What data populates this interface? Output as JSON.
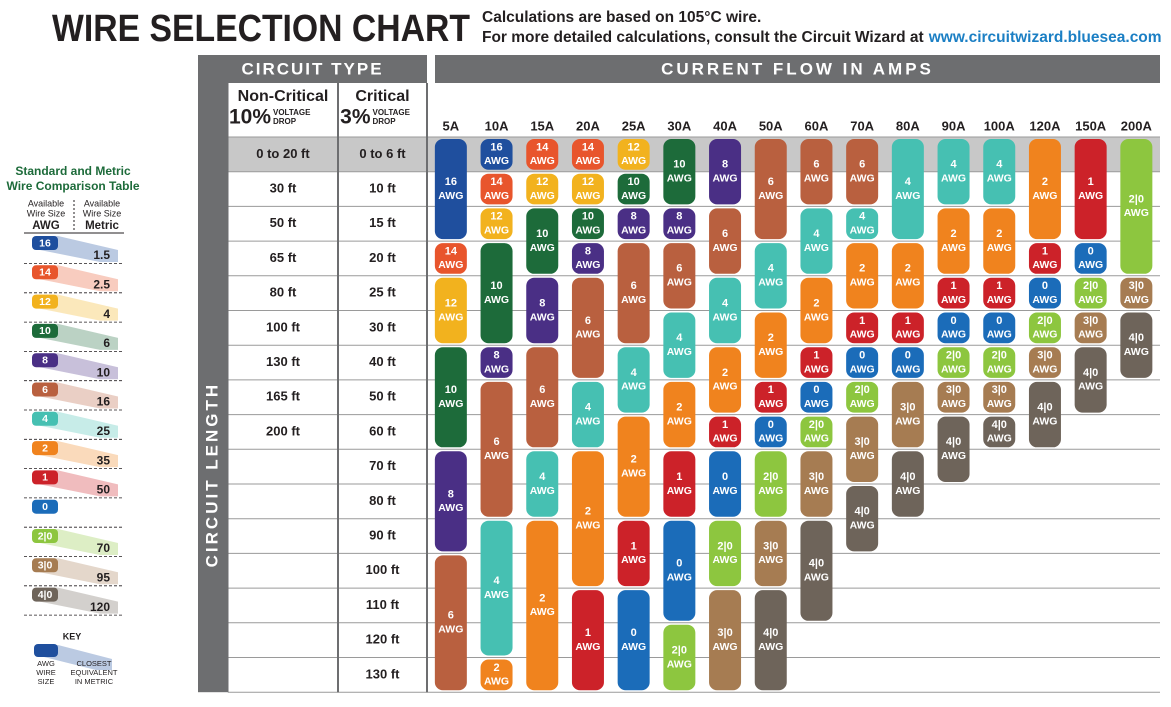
{
  "header": {
    "title": "WIRE SELECTION CHART",
    "notes": [
      "Calculations are based on 105°C wire.",
      "For more detailed calculations, consult the Circuit Wizard at"
    ],
    "link": "www.circuitwizard.bluesea.com"
  },
  "comparison": {
    "title": [
      "Standard and Metric",
      "Wire Comparison Table"
    ],
    "col_headers": [
      [
        "Available",
        "Wire Size",
        "AWG"
      ],
      [
        "Available",
        "Wire Size",
        "Metric"
      ]
    ],
    "rows": [
      {
        "awg": "16",
        "metric": "1.5",
        "color": "#1f4f9e"
      },
      {
        "awg": "14",
        "metric": "2.5",
        "color": "#e8552c"
      },
      {
        "awg": "12",
        "metric": "4",
        "color": "#f2b21e"
      },
      {
        "awg": "10",
        "metric": "6",
        "color": "#1d6b3a"
      },
      {
        "awg": "8",
        "metric": "10",
        "color": "#4a2f85"
      },
      {
        "awg": "6",
        "metric": "16",
        "color": "#b9603f"
      },
      {
        "awg": "4",
        "metric": "25",
        "color": "#46c0b2"
      },
      {
        "awg": "2",
        "metric": "35",
        "color": "#f0831e"
      },
      {
        "awg": "1",
        "metric": "50",
        "color": "#cc2229"
      },
      {
        "awg": "0",
        "metric": null,
        "color": "#1b6cb9"
      },
      {
        "awg": "2|0",
        "metric": "70",
        "color": "#8dc63f"
      },
      {
        "awg": "3|0",
        "metric": "95",
        "color": "#a67c52"
      },
      {
        "awg": "4|0",
        "metric": "120",
        "color": "#6e645a"
      }
    ],
    "key": {
      "title": "KEY",
      "awg": [
        "AWG",
        "WIRE",
        "SIZE"
      ],
      "metric": [
        "CLOSEST",
        "EQUIVALENT",
        "IN METRIC"
      ]
    }
  },
  "chart": {
    "circuit_type": "CIRCUIT TYPE",
    "current_flow": "CURRENT FLOW IN AMPS",
    "circuit_length": "CIRCUIT LENGTH",
    "unit": "AWG",
    "non_critical": {
      "name": "Non-Critical",
      "pct": "10%",
      "drop": [
        "VOLTAGE",
        "DROP"
      ],
      "lengths": [
        "0 to 20 ft",
        "30 ft",
        "50 ft",
        "65 ft",
        "80 ft",
        "100 ft",
        "130 ft",
        "165 ft",
        "200 ft"
      ]
    },
    "critical": {
      "name": "Critical",
      "pct": "3%",
      "drop": [
        "VOLTAGE",
        "DROP"
      ],
      "lengths": [
        "0 to 6 ft",
        "10 ft",
        "15 ft",
        "20 ft",
        "25 ft",
        "30 ft",
        "40 ft",
        "50 ft",
        "60 ft",
        "70 ft",
        "80 ft",
        "90 ft",
        "100 ft",
        "110 ft",
        "120 ft",
        "130 ft"
      ]
    },
    "amps": [
      {
        "label": "5A",
        "cells": [
          "16",
          "16",
          "16",
          "14",
          "12",
          "12",
          "10",
          "10",
          "10",
          "8",
          "8",
          "8",
          "6",
          "6",
          "6",
          "6"
        ]
      },
      {
        "label": "10A",
        "cells": [
          "16",
          "14",
          "12",
          "10",
          "10",
          "10",
          "8",
          "6",
          "6",
          "6",
          "6",
          "4",
          "4",
          "4",
          "4",
          "2"
        ]
      },
      {
        "label": "15A",
        "cells": [
          "14",
          "12",
          "10",
          "10",
          "8",
          "8",
          "6",
          "6",
          "6",
          "4",
          "4",
          "2",
          "2",
          "2",
          "2",
          "2"
        ]
      },
      {
        "label": "20A",
        "cells": [
          "14",
          "12",
          "10",
          "8",
          "6",
          "6",
          "6",
          "4",
          "4",
          "2",
          "2",
          "2",
          "2",
          "1",
          "1",
          "1"
        ]
      },
      {
        "label": "25A",
        "cells": [
          "12",
          "10",
          "8",
          "6",
          "6",
          "6",
          "4",
          "4",
          "2",
          "2",
          "2",
          "1",
          "1",
          "0",
          "0",
          "0"
        ]
      },
      {
        "label": "30A",
        "cells": [
          "10",
          "10",
          "8",
          "6",
          "6",
          "4",
          "4",
          "2",
          "2",
          "1",
          "1",
          "0",
          "0",
          "0",
          "2|0",
          "2|0"
        ]
      },
      {
        "label": "40A",
        "cells": [
          "8",
          "8",
          "6",
          "6",
          "4",
          "4",
          "2",
          "2",
          "1",
          "0",
          "0",
          "2|0",
          "2|0",
          "3|0",
          "3|0",
          "3|0"
        ]
      },
      {
        "label": "50A",
        "cells": [
          "6",
          "6",
          "6",
          "4",
          "4",
          "2",
          "2",
          "1",
          "0",
          "2|0",
          "2|0",
          "3|0",
          "3|0",
          "4|0",
          "4|0",
          "4|0"
        ]
      },
      {
        "label": "60A",
        "cells": [
          "6",
          "6",
          "4",
          "4",
          "2",
          "2",
          "1",
          "0",
          "2|0",
          "3|0",
          "3|0",
          "4|0",
          "4|0",
          "4|0",
          null,
          null
        ]
      },
      {
        "label": "70A",
        "cells": [
          "6",
          "6",
          "4",
          "2",
          "2",
          "1",
          "0",
          "2|0",
          "3|0",
          "3|0",
          "4|0",
          "4|0",
          null,
          null,
          null,
          null
        ]
      },
      {
        "label": "80A",
        "cells": [
          "4",
          "4",
          "4",
          "2",
          "2",
          "1",
          "0",
          "3|0",
          "3|0",
          "4|0",
          "4|0",
          null,
          null,
          null,
          null,
          null
        ]
      },
      {
        "label": "90A",
        "cells": [
          "4",
          "4",
          "2",
          "2",
          "1",
          "0",
          "2|0",
          "3|0",
          "4|0",
          "4|0",
          null,
          null,
          null,
          null,
          null,
          null
        ]
      },
      {
        "label": "100A",
        "cells": [
          "4",
          "4",
          "2",
          "2",
          "1",
          "0",
          "2|0",
          "3|0",
          "4|0",
          null,
          null,
          null,
          null,
          null,
          null,
          null
        ]
      },
      {
        "label": "120A",
        "cells": [
          "2",
          "2",
          "2",
          "1",
          "0",
          "2|0",
          "3|0",
          "4|0",
          "4|0",
          null,
          null,
          null,
          null,
          null,
          null,
          null
        ]
      },
      {
        "label": "150A",
        "cells": [
          "1",
          "1",
          "1",
          "0",
          "2|0",
          "3|0",
          "4|0",
          "4|0",
          null,
          null,
          null,
          null,
          null,
          null,
          null,
          null
        ]
      },
      {
        "label": "200A",
        "cells": [
          "2|0",
          "2|0",
          "2|0",
          "2|0",
          "3|0",
          "4|0",
          "4|0",
          null,
          null,
          null,
          null,
          null,
          null,
          null,
          null,
          null
        ]
      }
    ]
  }
}
